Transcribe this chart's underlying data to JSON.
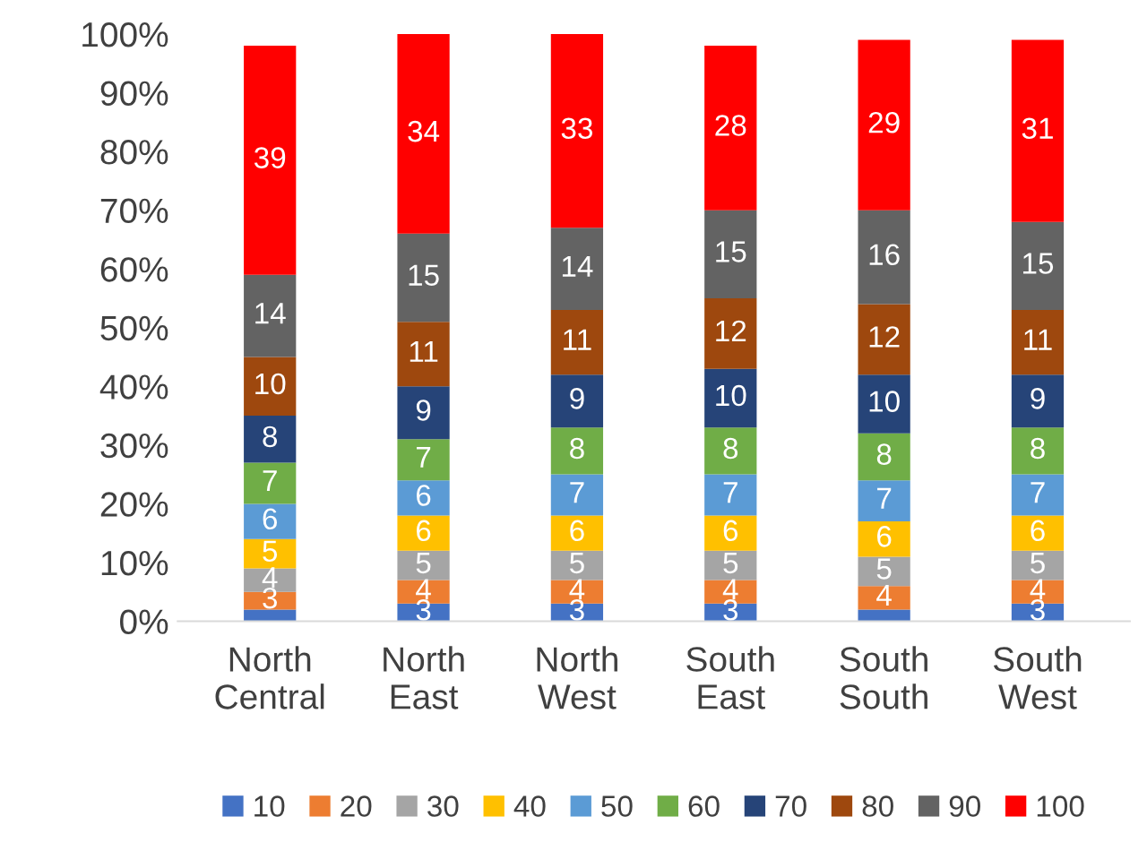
{
  "chart_data": {
    "type": "bar",
    "stacked": true,
    "legend": "bottom",
    "grid": false,
    "categories": [
      "North\nCentral",
      "North\nEast",
      "North\nWest",
      "South\nEast",
      "South\nSouth",
      "South\nWest"
    ],
    "ylim": [
      0,
      100
    ],
    "yticks": [
      {
        "value": 0,
        "label": "0%"
      },
      {
        "value": 10,
        "label": "10%"
      },
      {
        "value": 20,
        "label": "20%"
      },
      {
        "value": 30,
        "label": "30%"
      },
      {
        "value": 40,
        "label": "40%"
      },
      {
        "value": 50,
        "label": "50%"
      },
      {
        "value": 60,
        "label": "60%"
      },
      {
        "value": 70,
        "label": "70%"
      },
      {
        "value": 80,
        "label": "80%"
      },
      {
        "value": 90,
        "label": "90%"
      },
      {
        "value": 100,
        "label": "100%"
      }
    ],
    "series": [
      {
        "name": "10",
        "color": "#4472c4",
        "values": [
          2,
          3,
          3,
          3,
          2,
          3
        ],
        "value_labels": [
          null,
          "3",
          "3",
          "3",
          null,
          "3"
        ]
      },
      {
        "name": "20",
        "color": "#ed7d31",
        "values": [
          3,
          4,
          4,
          4,
          4,
          4
        ],
        "value_labels": [
          "3",
          "4",
          "4",
          "4",
          "4",
          "4"
        ]
      },
      {
        "name": "30",
        "color": "#a5a5a5",
        "values": [
          4,
          5,
          5,
          5,
          5,
          5
        ],
        "value_labels": [
          "4",
          "5",
          "5",
          "5",
          "5",
          "5"
        ]
      },
      {
        "name": "40",
        "color": "#ffc000",
        "values": [
          5,
          6,
          6,
          6,
          6,
          6
        ],
        "value_labels": [
          "5",
          "6",
          "6",
          "6",
          "6",
          "6"
        ]
      },
      {
        "name": "50",
        "color": "#5b9bd5",
        "values": [
          6,
          6,
          7,
          7,
          7,
          7
        ],
        "value_labels": [
          "6",
          "6",
          "7",
          "7",
          "7",
          "7"
        ]
      },
      {
        "name": "60",
        "color": "#70ad47",
        "values": [
          7,
          7,
          8,
          8,
          8,
          8
        ],
        "value_labels": [
          "7",
          "7",
          "8",
          "8",
          "8",
          "8"
        ]
      },
      {
        "name": "70",
        "color": "#264478",
        "values": [
          8,
          9,
          9,
          10,
          10,
          9
        ],
        "value_labels": [
          "8",
          "9",
          "9",
          "10",
          "10",
          "9"
        ]
      },
      {
        "name": "80",
        "color": "#9e480e",
        "values": [
          10,
          11,
          11,
          12,
          12,
          11
        ],
        "value_labels": [
          "10",
          "11",
          "11",
          "12",
          "12",
          "11"
        ]
      },
      {
        "name": "90",
        "color": "#636363",
        "values": [
          14,
          15,
          14,
          15,
          16,
          15
        ],
        "value_labels": [
          "14",
          "15",
          "14",
          "15",
          "16",
          "15"
        ]
      },
      {
        "name": "100",
        "color": "#ff0000",
        "values": [
          39,
          34,
          33,
          28,
          29,
          31
        ],
        "value_labels": [
          "39",
          "34",
          "33",
          "28",
          "29",
          "31"
        ]
      }
    ]
  }
}
